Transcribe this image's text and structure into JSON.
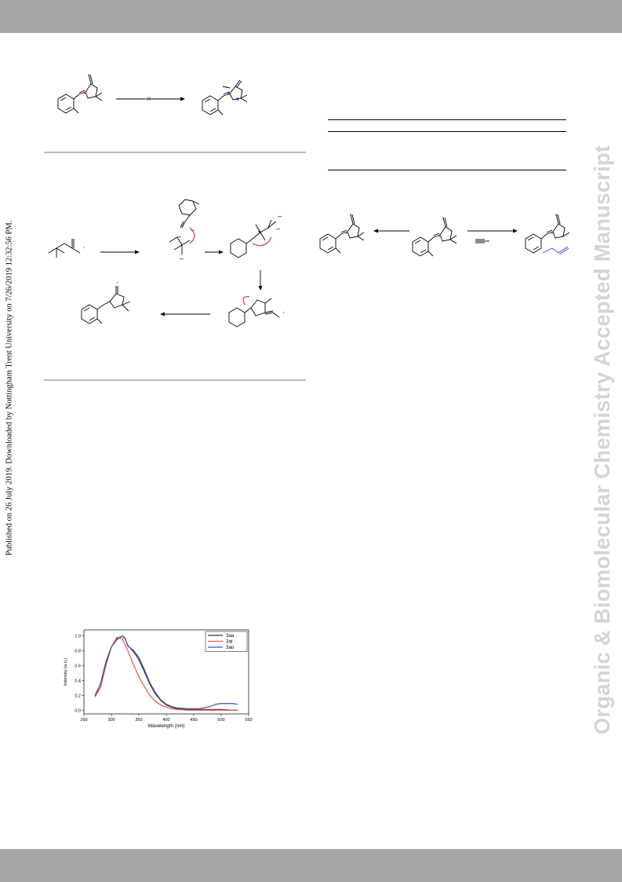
{
  "side_note_left": "Published on 26 July 2019. Downloaded by Nottingham Trent University on 7/26/2019 12:32:56 PM.",
  "watermark_right": "Organic & Biomolecular Chemistry Accepted Manuscript",
  "scheme_marks": {
    "blocked": "×",
    "dot": "·",
    "lone_pair": "··",
    "minus": "–",
    "plus": "+"
  },
  "chart_data": {
    "type": "line",
    "title": "",
    "xlabel": "Wavelength (nm)",
    "ylabel": "Intensity (a.u.)",
    "xlim": [
      250,
      550
    ],
    "ylim": [
      -0.05,
      1.08
    ],
    "xticks": [
      "250",
      "300",
      "350",
      "400",
      "450",
      "500",
      "550"
    ],
    "yticks": [
      "0.0",
      "0.2",
      "0.4",
      "0.6",
      "0.8",
      "1.0"
    ],
    "legend_position": "top-right",
    "grid": false,
    "colors": [
      "#333333",
      "#e8554e",
      "#4a4fb5"
    ],
    "series": [
      {
        "name": "3aa",
        "x": [
          270,
          280,
          290,
          300,
          310,
          320,
          325,
          330,
          340,
          350,
          360,
          370,
          380,
          390,
          400,
          410,
          420,
          440,
          460,
          480,
          500,
          520,
          530
        ],
        "y": [
          0.18,
          0.35,
          0.65,
          0.85,
          0.95,
          1.0,
          0.96,
          0.87,
          0.79,
          0.68,
          0.52,
          0.35,
          0.22,
          0.13,
          0.07,
          0.04,
          0.02,
          0.01,
          0.01,
          0.01,
          0.01,
          0.0,
          0.0
        ]
      },
      {
        "name": "3ai",
        "x": [
          270,
          280,
          290,
          300,
          310,
          320,
          330,
          340,
          350,
          360,
          370,
          380,
          390,
          400,
          410,
          420,
          440,
          460,
          480,
          500,
          520,
          530
        ],
        "y": [
          0.18,
          0.3,
          0.6,
          0.85,
          0.98,
          0.96,
          0.8,
          0.62,
          0.45,
          0.32,
          0.2,
          0.12,
          0.07,
          0.04,
          0.02,
          0.01,
          0.0,
          0.0,
          0.0,
          0.0,
          0.0,
          0.0
        ]
      },
      {
        "name": "3ao",
        "x": [
          270,
          280,
          290,
          300,
          310,
          320,
          325,
          330,
          340,
          350,
          360,
          370,
          380,
          390,
          400,
          410,
          420,
          440,
          460,
          480,
          490,
          500,
          510,
          520,
          530
        ],
        "y": [
          0.2,
          0.35,
          0.63,
          0.85,
          0.96,
          1.0,
          0.97,
          0.86,
          0.81,
          0.71,
          0.55,
          0.37,
          0.24,
          0.14,
          0.08,
          0.05,
          0.03,
          0.02,
          0.02,
          0.05,
          0.08,
          0.09,
          0.09,
          0.09,
          0.08
        ]
      }
    ]
  }
}
